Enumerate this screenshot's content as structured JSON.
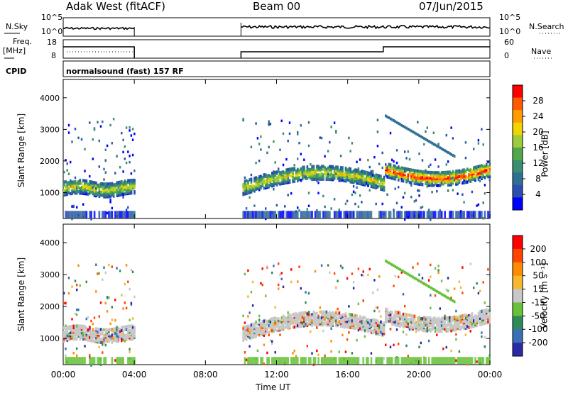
{
  "header": {
    "radar": "Adak West (fitACF)",
    "beam": "Beam 00",
    "date": "07/Jun/2015"
  },
  "panels": {
    "nsky_label": "N.Sky",
    "nsearch_label": "N.Search",
    "nsky_ticks": [
      "10^5",
      "10^0"
    ],
    "freq_label": "Freq.",
    "freq_unit": "[MHz]",
    "freq_ticks": [
      "18",
      "8"
    ],
    "nave_label": "Nave",
    "nave_ticks": [
      "60",
      "0"
    ],
    "cpid_label": "CPID",
    "cpid_text": "normalsound (fast) 157 RF"
  },
  "chart_data": [
    {
      "type": "heatmap",
      "title": "",
      "xlabel": "Time UT",
      "ylabel": "Slant Range [km]",
      "x_ticks": [
        "00:00",
        "04:00",
        "08:00",
        "12:00",
        "16:00",
        "20:00",
        "00:00"
      ],
      "y_ticks": [
        "1000",
        "2000",
        "3000",
        "4000"
      ],
      "xlim_hours": [
        0,
        24
      ],
      "ylim_km": [
        180,
        4580
      ],
      "colorbar": {
        "label": "Power [dB]",
        "ticks": [
          "28",
          "24",
          "20",
          "16",
          "12",
          "8",
          "4"
        ],
        "range": [
          0,
          30
        ]
      },
      "echo_bands": [
        {
          "t_start": 0.0,
          "t_end": 4.0,
          "range_km": 1100,
          "level": "low-mid"
        },
        {
          "t_start": 10.0,
          "t_end": 18.0,
          "range_km": 1300,
          "level": "mid-high"
        },
        {
          "t_start": 18.0,
          "t_end": 24.0,
          "range_km": 1700,
          "level": "high"
        }
      ]
    },
    {
      "type": "heatmap",
      "title": "",
      "xlabel": "Time UT",
      "ylabel": "Slant Range [km]",
      "x_ticks": [
        "00:00",
        "04:00",
        "08:00",
        "12:00",
        "16:00",
        "20:00",
        "00:00"
      ],
      "y_ticks": [
        "1000",
        "2000",
        "3000",
        "4000"
      ],
      "xlim_hours": [
        0,
        24
      ],
      "ylim_km": [
        180,
        4580
      ],
      "colorbar": {
        "label": "Velocity [m s⁻¹]",
        "ticks": [
          "200",
          "100",
          "50",
          "15",
          "-15",
          "-50",
          "-100",
          "-200"
        ],
        "range": [
          -250,
          250
        ]
      }
    }
  ],
  "colors": {
    "power_scale": [
      "#0000ff",
      "#2a4fb0",
      "#2f6f93",
      "#3a8f70",
      "#4fa84a",
      "#9ccc3a",
      "#f0d400",
      "#ff9d00",
      "#ff5a00",
      "#ff0000"
    ],
    "velocity_scale": [
      "#2a2aa8",
      "#3b6fb5",
      "#2e8b57",
      "#67c23a",
      "#c8c8c8",
      "#f5b82e",
      "#ff8c00",
      "#ff4500",
      "#ff0000"
    ]
  }
}
